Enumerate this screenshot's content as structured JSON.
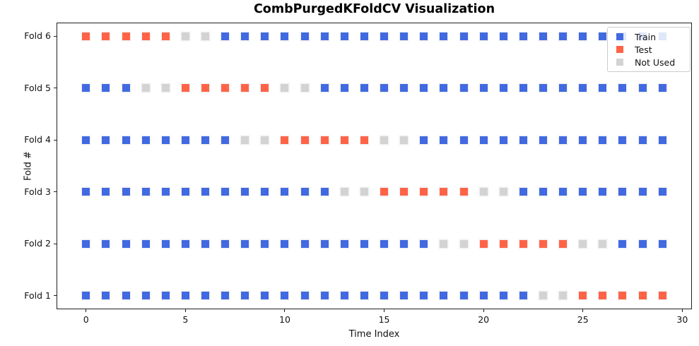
{
  "title": "CombPurgedKFoldCV Visualization",
  "axes": {
    "xlabel": "Time Index",
    "ylabel": "Fold #",
    "x_tick_labels": [
      "0",
      "5",
      "10",
      "15",
      "20",
      "25",
      "30"
    ],
    "y_tick_labels": [
      "Fold 1",
      "Fold 2",
      "Fold 3",
      "Fold 4",
      "Fold 5",
      "Fold 6"
    ]
  },
  "legend": {
    "position": "upper right",
    "items": [
      {
        "name": "train",
        "label": "Train",
        "color": "#4169E1"
      },
      {
        "name": "test",
        "label": "Test",
        "color": "#FF6347"
      },
      {
        "name": "unused",
        "label": "Not Used",
        "color": "#D3D3D3"
      }
    ]
  },
  "chart_data": {
    "type": "scatter",
    "title": "CombPurgedKFoldCV Visualization",
    "xlabel": "Time Index",
    "ylabel": "Fold #",
    "marker": "square",
    "grid": false,
    "n_time_indices": 30,
    "n_folds": 6,
    "x_tick_values": [
      0,
      5,
      10,
      15,
      20,
      25,
      30
    ],
    "x_data_range": [
      0,
      29
    ],
    "y_data_range": [
      1,
      6
    ],
    "colors": {
      "train": "#4169E1",
      "test": "#FF6347",
      "unused": "#D3D3D3"
    },
    "folds": [
      {
        "label": "Fold 1",
        "y": 1,
        "segments": [
          {
            "state": "train",
            "from": 0,
            "to": 22
          },
          {
            "state": "unused",
            "from": 23,
            "to": 24
          },
          {
            "state": "test",
            "from": 25,
            "to": 29
          }
        ]
      },
      {
        "label": "Fold 2",
        "y": 2,
        "segments": [
          {
            "state": "train",
            "from": 0,
            "to": 17
          },
          {
            "state": "unused",
            "from": 18,
            "to": 19
          },
          {
            "state": "test",
            "from": 20,
            "to": 24
          },
          {
            "state": "unused",
            "from": 25,
            "to": 26
          },
          {
            "state": "train",
            "from": 27,
            "to": 29
          }
        ]
      },
      {
        "label": "Fold 3",
        "y": 3,
        "segments": [
          {
            "state": "train",
            "from": 0,
            "to": 12
          },
          {
            "state": "unused",
            "from": 13,
            "to": 14
          },
          {
            "state": "test",
            "from": 15,
            "to": 19
          },
          {
            "state": "unused",
            "from": 20,
            "to": 21
          },
          {
            "state": "train",
            "from": 22,
            "to": 29
          }
        ]
      },
      {
        "label": "Fold 4",
        "y": 4,
        "segments": [
          {
            "state": "train",
            "from": 0,
            "to": 7
          },
          {
            "state": "unused",
            "from": 8,
            "to": 9
          },
          {
            "state": "test",
            "from": 10,
            "to": 14
          },
          {
            "state": "unused",
            "from": 15,
            "to": 16
          },
          {
            "state": "train",
            "from": 17,
            "to": 29
          }
        ]
      },
      {
        "label": "Fold 5",
        "y": 5,
        "segments": [
          {
            "state": "train",
            "from": 0,
            "to": 2
          },
          {
            "state": "unused",
            "from": 3,
            "to": 4
          },
          {
            "state": "test",
            "from": 5,
            "to": 9
          },
          {
            "state": "unused",
            "from": 10,
            "to": 11
          },
          {
            "state": "train",
            "from": 12,
            "to": 29
          }
        ]
      },
      {
        "label": "Fold 6",
        "y": 6,
        "segments": [
          {
            "state": "test",
            "from": 0,
            "to": 4
          },
          {
            "state": "unused",
            "from": 5,
            "to": 6
          },
          {
            "state": "train",
            "from": 7,
            "to": 29
          }
        ]
      }
    ]
  }
}
